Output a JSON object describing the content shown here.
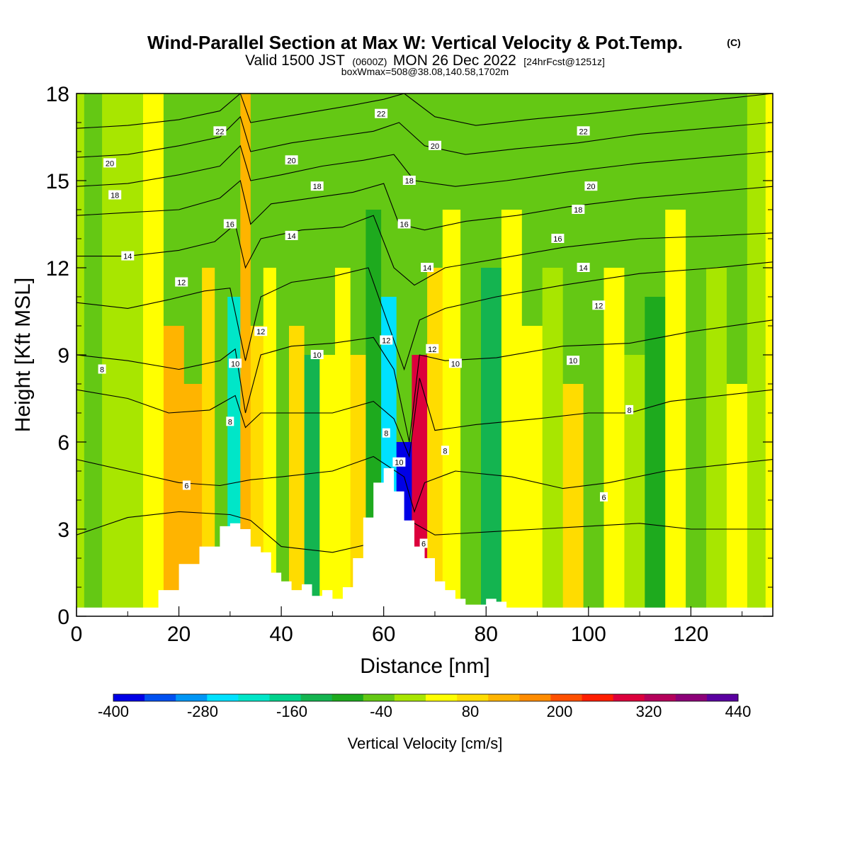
{
  "chart_data": {
    "type": "heatmap",
    "title": "Wind-Parallel Section at Max W: Vertical Velocity & Pot.Temp.",
    "title_suffix": "(C)",
    "subtitle_parts": [
      "Valid 1500 JST",
      "(0600Z)",
      "MON 26 Dec 2022",
      "[24hrFcst@1251z]"
    ],
    "info": "boxWmax=508@38.08,140.58,1702m",
    "xlabel": "Distance [nm]",
    "ylabel": "Height [Kft MSL]",
    "xlim": [
      0,
      136
    ],
    "ylim": [
      0,
      18
    ],
    "x_ticks": [
      "0",
      "20",
      "40",
      "60",
      "80",
      "100",
      "120"
    ],
    "y_ticks": [
      "0",
      "3",
      "6",
      "9",
      "12",
      "15",
      "18"
    ],
    "grid": false,
    "colorbar": {
      "title": "Vertical Velocity [cm/s]",
      "tick_labels": [
        "-400",
        "-280",
        "-160",
        "-40",
        "80",
        "200",
        "320",
        "440"
      ],
      "colors": [
        "#0000e6",
        "#0050f0",
        "#0096f5",
        "#00e1ff",
        "#00e6c8",
        "#00d28c",
        "#14b450",
        "#1eaa1e",
        "#64c814",
        "#a8e600",
        "#ffff00",
        "#ffdc00",
        "#ffb400",
        "#ff8c00",
        "#ff5000",
        "#ff1e00",
        "#dc003c",
        "#b4005a",
        "#8c0078",
        "#5a00a0"
      ]
    },
    "terrain": {
      "x": [
        0,
        12,
        16,
        20,
        24,
        28,
        30,
        32,
        34,
        36,
        38,
        40,
        42,
        44,
        46,
        48,
        50,
        52,
        54,
        56,
        58,
        60,
        62,
        64,
        66,
        68,
        70,
        72,
        74,
        76,
        78,
        80,
        82,
        84,
        90,
        100,
        110,
        120,
        136
      ],
      "y": [
        0.3,
        0.3,
        0.9,
        1.8,
        2.4,
        3.1,
        3.2,
        3.0,
        2.4,
        2.2,
        1.5,
        1.2,
        0.9,
        1.1,
        0.7,
        0.9,
        0.6,
        1.0,
        2.0,
        3.4,
        4.6,
        5.1,
        4.3,
        3.3,
        2.4,
        2.0,
        1.2,
        0.9,
        0.6,
        0.4,
        0.4,
        0.6,
        0.5,
        0.3,
        0.3,
        0.3,
        0.3,
        0.3,
        0.3
      ]
    },
    "shading_bands": [
      {
        "x": 0,
        "w": 0,
        "ymax": 18
      },
      {
        "x": 3,
        "w": -40,
        "ymax": 18
      },
      {
        "x": 7,
        "w": 10,
        "ymax": 18
      },
      {
        "x": 11,
        "w": -20,
        "ymax": 18
      },
      {
        "x": 15,
        "w": 30,
        "ymax": 18
      },
      {
        "x": 19,
        "w": 110,
        "ymax": 10
      },
      {
        "x": 23,
        "w": 130,
        "ymax": 8
      },
      {
        "x": 26,
        "w": 70,
        "ymax": 12
      },
      {
        "x": 28,
        "w": -60,
        "ymax": 14
      },
      {
        "x": 31,
        "w": -220,
        "ymax": 11
      },
      {
        "x": 33,
        "w": 140,
        "ymax": 18
      },
      {
        "x": 35,
        "w": 90,
        "ymax": 10
      },
      {
        "x": 38,
        "w": 20,
        "ymax": 12
      },
      {
        "x": 40,
        "w": -40,
        "ymax": 10
      },
      {
        "x": 43,
        "w": 80,
        "ymax": 10
      },
      {
        "x": 46,
        "w": -120,
        "ymax": 9
      },
      {
        "x": 49,
        "w": 20,
        "ymax": 9
      },
      {
        "x": 52,
        "w": 40,
        "ymax": 12
      },
      {
        "x": 55,
        "w": 100,
        "ymax": 9
      },
      {
        "x": 58,
        "w": -80,
        "ymax": 14
      },
      {
        "x": 61,
        "w": -260,
        "ymax": 11
      },
      {
        "x": 64,
        "w": -360,
        "ymax": 6
      },
      {
        "x": 67,
        "w": 300,
        "ymax": 9
      },
      {
        "x": 70,
        "w": 80,
        "ymax": 12
      },
      {
        "x": 73,
        "w": 20,
        "ymax": 14
      },
      {
        "x": 77,
        "w": -40,
        "ymax": 16
      },
      {
        "x": 81,
        "w": -140,
        "ymax": 12
      },
      {
        "x": 85,
        "w": 30,
        "ymax": 14
      },
      {
        "x": 89,
        "w": 60,
        "ymax": 10
      },
      {
        "x": 93,
        "w": -20,
        "ymax": 12
      },
      {
        "x": 97,
        "w": 70,
        "ymax": 8
      },
      {
        "x": 101,
        "w": -60,
        "ymax": 14
      },
      {
        "x": 105,
        "w": 40,
        "ymax": 12
      },
      {
        "x": 109,
        "w": 10,
        "ymax": 9
      },
      {
        "x": 113,
        "w": -100,
        "ymax": 11
      },
      {
        "x": 117,
        "w": 30,
        "ymax": 14
      },
      {
        "x": 121,
        "w": -40,
        "ymax": 14
      },
      {
        "x": 125,
        "w": -20,
        "ymax": 12
      },
      {
        "x": 129,
        "w": 40,
        "ymax": 8
      },
      {
        "x": 133,
        "w": -10,
        "ymax": 18
      }
    ],
    "isentropes": [
      {
        "theta": 4,
        "pts": [
          [
            0,
            2.8
          ],
          [
            5,
            3.1
          ],
          [
            10,
            3.4
          ],
          [
            20,
            3.6
          ],
          [
            30,
            3.5
          ],
          [
            34,
            3.3
          ],
          [
            40,
            2.4
          ],
          [
            50,
            2.2
          ],
          [
            60,
            2.6
          ],
          [
            66,
            3.2
          ],
          [
            70,
            2.8
          ],
          [
            80,
            2.9
          ],
          [
            90,
            3.0
          ],
          [
            100,
            3.1
          ],
          [
            110,
            3.2
          ],
          [
            120,
            3.0
          ],
          [
            136,
            3.0
          ]
        ]
      },
      {
        "theta": 6,
        "pts": [
          [
            0,
            5.4
          ],
          [
            10,
            5.0
          ],
          [
            20,
            4.6
          ],
          [
            28,
            4.5
          ],
          [
            34,
            4.7
          ],
          [
            40,
            4.8
          ],
          [
            50,
            5.0
          ],
          [
            58,
            5.5
          ],
          [
            64,
            4.8
          ],
          [
            66,
            3.6
          ],
          [
            68,
            4.6
          ],
          [
            74,
            5.0
          ],
          [
            85,
            4.8
          ],
          [
            95,
            4.4
          ],
          [
            104,
            4.6
          ],
          [
            115,
            5.0
          ],
          [
            136,
            5.4
          ]
        ]
      },
      {
        "theta": 8,
        "pts": [
          [
            0,
            7.8
          ],
          [
            10,
            7.5
          ],
          [
            18,
            7.0
          ],
          [
            26,
            7.1
          ],
          [
            31,
            7.6
          ],
          [
            33,
            6.5
          ],
          [
            36,
            7.0
          ],
          [
            42,
            7.0
          ],
          [
            50,
            7.0
          ],
          [
            58,
            7.4
          ],
          [
            62,
            6.8
          ],
          [
            65,
            5.5
          ],
          [
            67,
            8.2
          ],
          [
            70,
            6.4
          ],
          [
            78,
            6.6
          ],
          [
            90,
            6.8
          ],
          [
            100,
            7.0
          ],
          [
            108,
            7.0
          ],
          [
            116,
            7.4
          ],
          [
            136,
            7.8
          ]
        ]
      },
      {
        "theta": 10,
        "pts": [
          [
            0,
            9.0
          ],
          [
            10,
            8.8
          ],
          [
            20,
            8.5
          ],
          [
            28,
            8.8
          ],
          [
            31,
            9.2
          ],
          [
            33,
            7.0
          ],
          [
            36,
            9.0
          ],
          [
            42,
            9.3
          ],
          [
            50,
            9.4
          ],
          [
            58,
            9.6
          ],
          [
            62,
            8.5
          ],
          [
            65,
            6.0
          ],
          [
            67,
            9.0
          ],
          [
            72,
            8.8
          ],
          [
            82,
            8.9
          ],
          [
            95,
            9.3
          ],
          [
            108,
            9.4
          ],
          [
            120,
            9.8
          ],
          [
            136,
            10.2
          ]
        ]
      },
      {
        "theta": 12,
        "pts": [
          [
            0,
            10.8
          ],
          [
            10,
            10.6
          ],
          [
            18,
            10.9
          ],
          [
            25,
            11.2
          ],
          [
            30,
            11.3
          ],
          [
            33,
            8.8
          ],
          [
            36,
            11.0
          ],
          [
            42,
            11.5
          ],
          [
            50,
            11.7
          ],
          [
            57,
            12.0
          ],
          [
            61,
            10.0
          ],
          [
            64,
            8.5
          ],
          [
            67,
            10.2
          ],
          [
            72,
            10.6
          ],
          [
            82,
            11.0
          ],
          [
            95,
            11.4
          ],
          [
            110,
            11.8
          ],
          [
            125,
            12.0
          ],
          [
            136,
            12.2
          ]
        ]
      },
      {
        "theta": 14,
        "pts": [
          [
            0,
            12.4
          ],
          [
            10,
            12.4
          ],
          [
            20,
            12.6
          ],
          [
            27,
            12.9
          ],
          [
            31,
            13.5
          ],
          [
            33,
            12.0
          ],
          [
            36,
            13.0
          ],
          [
            44,
            13.3
          ],
          [
            52,
            13.4
          ],
          [
            58,
            13.8
          ],
          [
            62,
            12.0
          ],
          [
            66,
            11.4
          ],
          [
            72,
            12.0
          ],
          [
            82,
            12.3
          ],
          [
            95,
            12.7
          ],
          [
            110,
            13.0
          ],
          [
            125,
            13.1
          ],
          [
            136,
            13.2
          ]
        ]
      },
      {
        "theta": 16,
        "pts": [
          [
            0,
            13.8
          ],
          [
            10,
            13.9
          ],
          [
            20,
            14.0
          ],
          [
            28,
            14.4
          ],
          [
            32,
            15.0
          ],
          [
            34,
            13.5
          ],
          [
            38,
            14.2
          ],
          [
            46,
            14.4
          ],
          [
            54,
            14.6
          ],
          [
            60,
            14.9
          ],
          [
            63,
            13.5
          ],
          [
            68,
            13.3
          ],
          [
            76,
            13.6
          ],
          [
            86,
            13.8
          ],
          [
            96,
            14.1
          ],
          [
            110,
            14.4
          ],
          [
            136,
            14.8
          ]
        ]
      },
      {
        "theta": 18,
        "pts": [
          [
            0,
            14.8
          ],
          [
            10,
            14.9
          ],
          [
            20,
            15.2
          ],
          [
            28,
            15.5
          ],
          [
            32,
            16.2
          ],
          [
            34,
            15.0
          ],
          [
            40,
            15.2
          ],
          [
            48,
            15.5
          ],
          [
            56,
            15.7
          ],
          [
            62,
            15.9
          ],
          [
            66,
            15.0
          ],
          [
            74,
            14.8
          ],
          [
            84,
            15.0
          ],
          [
            96,
            15.3
          ],
          [
            110,
            15.6
          ],
          [
            136,
            16.0
          ]
        ]
      },
      {
        "theta": 20,
        "pts": [
          [
            0,
            15.8
          ],
          [
            10,
            15.9
          ],
          [
            20,
            16.2
          ],
          [
            28,
            16.5
          ],
          [
            32,
            17.2
          ],
          [
            34,
            16.0
          ],
          [
            42,
            16.3
          ],
          [
            50,
            16.5
          ],
          [
            58,
            16.7
          ],
          [
            63,
            17.0
          ],
          [
            68,
            16.2
          ],
          [
            76,
            15.9
          ],
          [
            86,
            16.1
          ],
          [
            98,
            16.3
          ],
          [
            110,
            16.6
          ],
          [
            136,
            17.0
          ]
        ]
      },
      {
        "theta": 22,
        "pts": [
          [
            0,
            16.8
          ],
          [
            10,
            16.9
          ],
          [
            20,
            17.1
          ],
          [
            28,
            17.4
          ],
          [
            32,
            18.0
          ],
          [
            34,
            17.0
          ],
          [
            44,
            17.3
          ],
          [
            54,
            17.6
          ],
          [
            60,
            17.8
          ],
          [
            64,
            18.0
          ],
          [
            70,
            17.2
          ],
          [
            78,
            16.9
          ],
          [
            88,
            17.1
          ],
          [
            100,
            17.3
          ],
          [
            115,
            17.6
          ],
          [
            136,
            18.0
          ]
        ]
      }
    ],
    "contour_labels": [
      {
        "text": "6",
        "x": 21.5,
        "y": 4.5
      },
      {
        "text": "6",
        "x": 67.8,
        "y": 2.5
      },
      {
        "text": "6",
        "x": 103,
        "y": 4.1
      },
      {
        "text": "8",
        "x": 5,
        "y": 8.5
      },
      {
        "text": "8",
        "x": 30,
        "y": 6.7
      },
      {
        "text": "8",
        "x": 60.5,
        "y": 6.3
      },
      {
        "text": "8",
        "x": 72,
        "y": 5.7
      },
      {
        "text": "8",
        "x": 108,
        "y": 7.1
      },
      {
        "text": "10",
        "x": 31,
        "y": 8.7
      },
      {
        "text": "10",
        "x": 47,
        "y": 9.0
      },
      {
        "text": "10",
        "x": 63,
        "y": 5.3
      },
      {
        "text": "10",
        "x": 74,
        "y": 8.7
      },
      {
        "text": "10",
        "x": 97,
        "y": 8.8
      },
      {
        "text": "12",
        "x": 20.5,
        "y": 11.5
      },
      {
        "text": "12",
        "x": 36,
        "y": 9.8
      },
      {
        "text": "12",
        "x": 60.5,
        "y": 9.5
      },
      {
        "text": "12",
        "x": 69.5,
        "y": 9.2
      },
      {
        "text": "12",
        "x": 102,
        "y": 10.7
      },
      {
        "text": "14",
        "x": 10,
        "y": 12.4
      },
      {
        "text": "14",
        "x": 42,
        "y": 13.1
      },
      {
        "text": "14",
        "x": 68.5,
        "y": 12.0
      },
      {
        "text": "14",
        "x": 99,
        "y": 12.0
      },
      {
        "text": "16",
        "x": 30,
        "y": 13.5
      },
      {
        "text": "16",
        "x": 64,
        "y": 13.5
      },
      {
        "text": "16",
        "x": 94,
        "y": 13.0
      },
      {
        "text": "18",
        "x": 7.5,
        "y": 14.5
      },
      {
        "text": "18",
        "x": 47,
        "y": 14.8
      },
      {
        "text": "18",
        "x": 65,
        "y": 15.0
      },
      {
        "text": "18",
        "x": 98,
        "y": 14.0
      },
      {
        "text": "20",
        "x": 6.5,
        "y": 15.6
      },
      {
        "text": "20",
        "x": 42,
        "y": 15.7
      },
      {
        "text": "20",
        "x": 70,
        "y": 16.2
      },
      {
        "text": "20",
        "x": 100.5,
        "y": 14.8
      },
      {
        "text": "22",
        "x": 28,
        "y": 16.7
      },
      {
        "text": "22",
        "x": 59.5,
        "y": 17.3
      },
      {
        "text": "22",
        "x": 99,
        "y": 16.7
      }
    ]
  }
}
